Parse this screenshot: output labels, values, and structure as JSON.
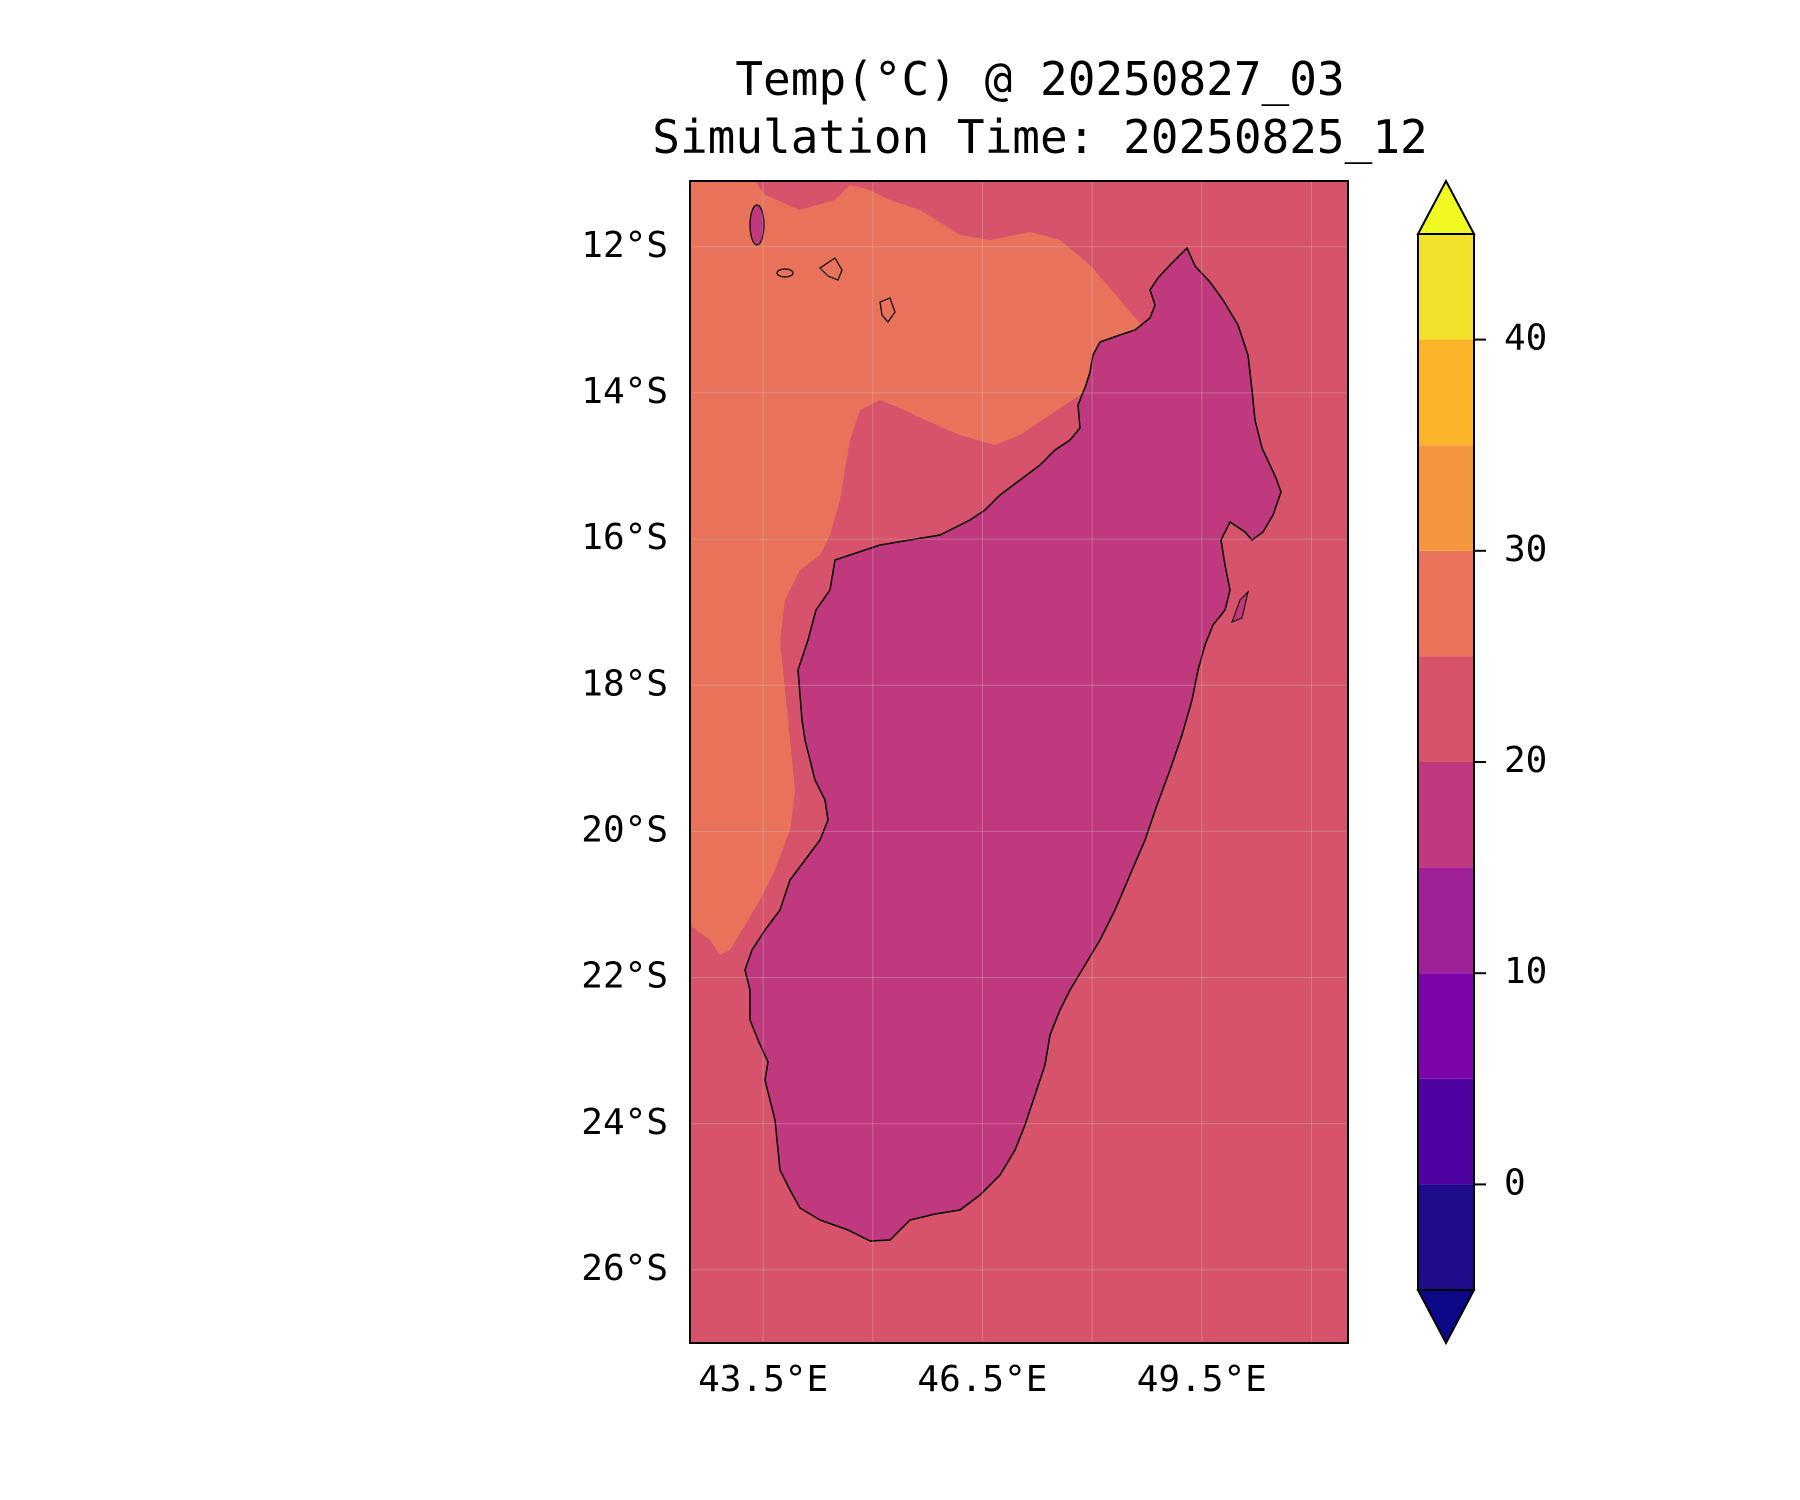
{
  "title": "Temp(°C) @ 20250827_03",
  "subtitle": "Simulation Time: 20250825_12",
  "map": {
    "variable": "Temp",
    "unit": "°C",
    "lon_range": [
      42.5,
      51.5
    ],
    "lat_range": [
      -27.0,
      -11.1
    ],
    "lat_ticks": [
      {
        "value": -12,
        "label": "12°S"
      },
      {
        "value": -14,
        "label": "14°S"
      },
      {
        "value": -16,
        "label": "16°S"
      },
      {
        "value": -18,
        "label": "18°S"
      },
      {
        "value": -20,
        "label": "20°S"
      },
      {
        "value": -22,
        "label": "22°S"
      },
      {
        "value": -24,
        "label": "24°S"
      },
      {
        "value": -26,
        "label": "26°S"
      }
    ],
    "lon_ticks": [
      {
        "value": 43.5,
        "label": "43.5°E"
      },
      {
        "value": 46.5,
        "label": "46.5°E"
      },
      {
        "value": 49.5,
        "label": "49.5°E"
      }
    ],
    "grid_lons": [
      43.5,
      45.0,
      46.5,
      48.0,
      49.5,
      51.0
    ],
    "gridlines": true,
    "region": "Madagascar",
    "colors": {
      "ocean_east": "#d6536b",
      "ocean_west_warm": "#e8735a",
      "land_base": "#c0397e",
      "land_cool": "#a0209a",
      "land_coldest": "#7c04a8",
      "coastline": "#000000"
    }
  },
  "colorbar": {
    "levels": [
      -5,
      0,
      5,
      10,
      15,
      20,
      25,
      30,
      35,
      40,
      45
    ],
    "colors": [
      "#1f0c8a",
      "#4f02a2",
      "#7c04a8",
      "#a0209a",
      "#c0397e",
      "#d6536b",
      "#e8735a",
      "#f5953d",
      "#fcb42a",
      "#f3e22a"
    ],
    "under_color": "#0d0887",
    "over_color": "#f0f921",
    "tick_values": [
      0,
      10,
      20,
      30,
      40
    ],
    "tick_labels": [
      "0",
      "10",
      "20",
      "30",
      "40"
    ]
  }
}
